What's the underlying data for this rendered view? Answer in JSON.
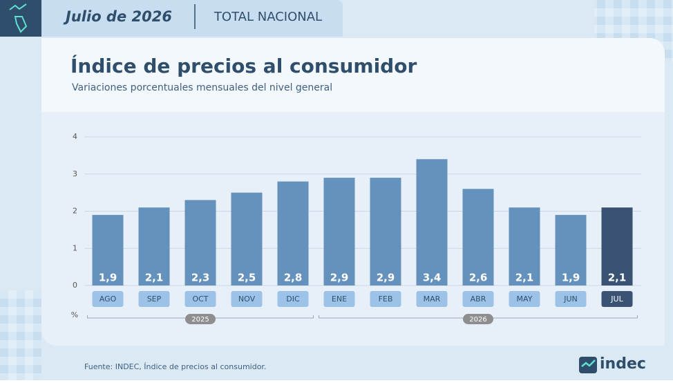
{
  "header": {
    "period": "Julio de 2026",
    "scope": "TOTAL NACIONAL"
  },
  "chart_data": {
    "type": "bar",
    "title": "Índice de precios al consumidor",
    "subtitle": "Variaciones porcentuales mensuales del nivel general",
    "categories": [
      "AGO",
      "SEP",
      "OCT",
      "NOV",
      "DIC",
      "ENE",
      "FEB",
      "MAR",
      "ABR",
      "MAY",
      "JUN",
      "JUL"
    ],
    "values": [
      1.9,
      2.1,
      2.3,
      2.5,
      2.8,
      2.9,
      2.9,
      3.4,
      2.6,
      2.1,
      1.9,
      2.1
    ],
    "value_labels": [
      "1,9",
      "2,1",
      "2,3",
      "2,5",
      "2,8",
      "2,9",
      "2,9",
      "3,4",
      "2,6",
      "2,1",
      "1,9",
      "2,1"
    ],
    "colors": [
      "#6591bd",
      "#6591bd",
      "#6591bd",
      "#6591bd",
      "#6591bd",
      "#6591bd",
      "#6591bd",
      "#6591bd",
      "#6591bd",
      "#6591bd",
      "#6591bd",
      "#3a5372"
    ],
    "category_colors": [
      "#9cc2e7",
      "#9cc2e7",
      "#9cc2e7",
      "#9cc2e7",
      "#9cc2e7",
      "#9cc2e7",
      "#9cc2e7",
      "#9cc2e7",
      "#9cc2e7",
      "#9cc2e7",
      "#9cc2e7",
      "#3a5372"
    ],
    "year_groups": [
      {
        "label": "2025",
        "count": 5
      },
      {
        "label": "2026",
        "count": 7
      }
    ],
    "y_unit": "%",
    "ylim": [
      0,
      4
    ],
    "yticks": [
      0,
      1,
      2,
      3,
      4
    ],
    "grid": true
  },
  "footer": {
    "source": "Fuente: INDEC, Índice de precios al consumidor.",
    "logo": "indec"
  }
}
